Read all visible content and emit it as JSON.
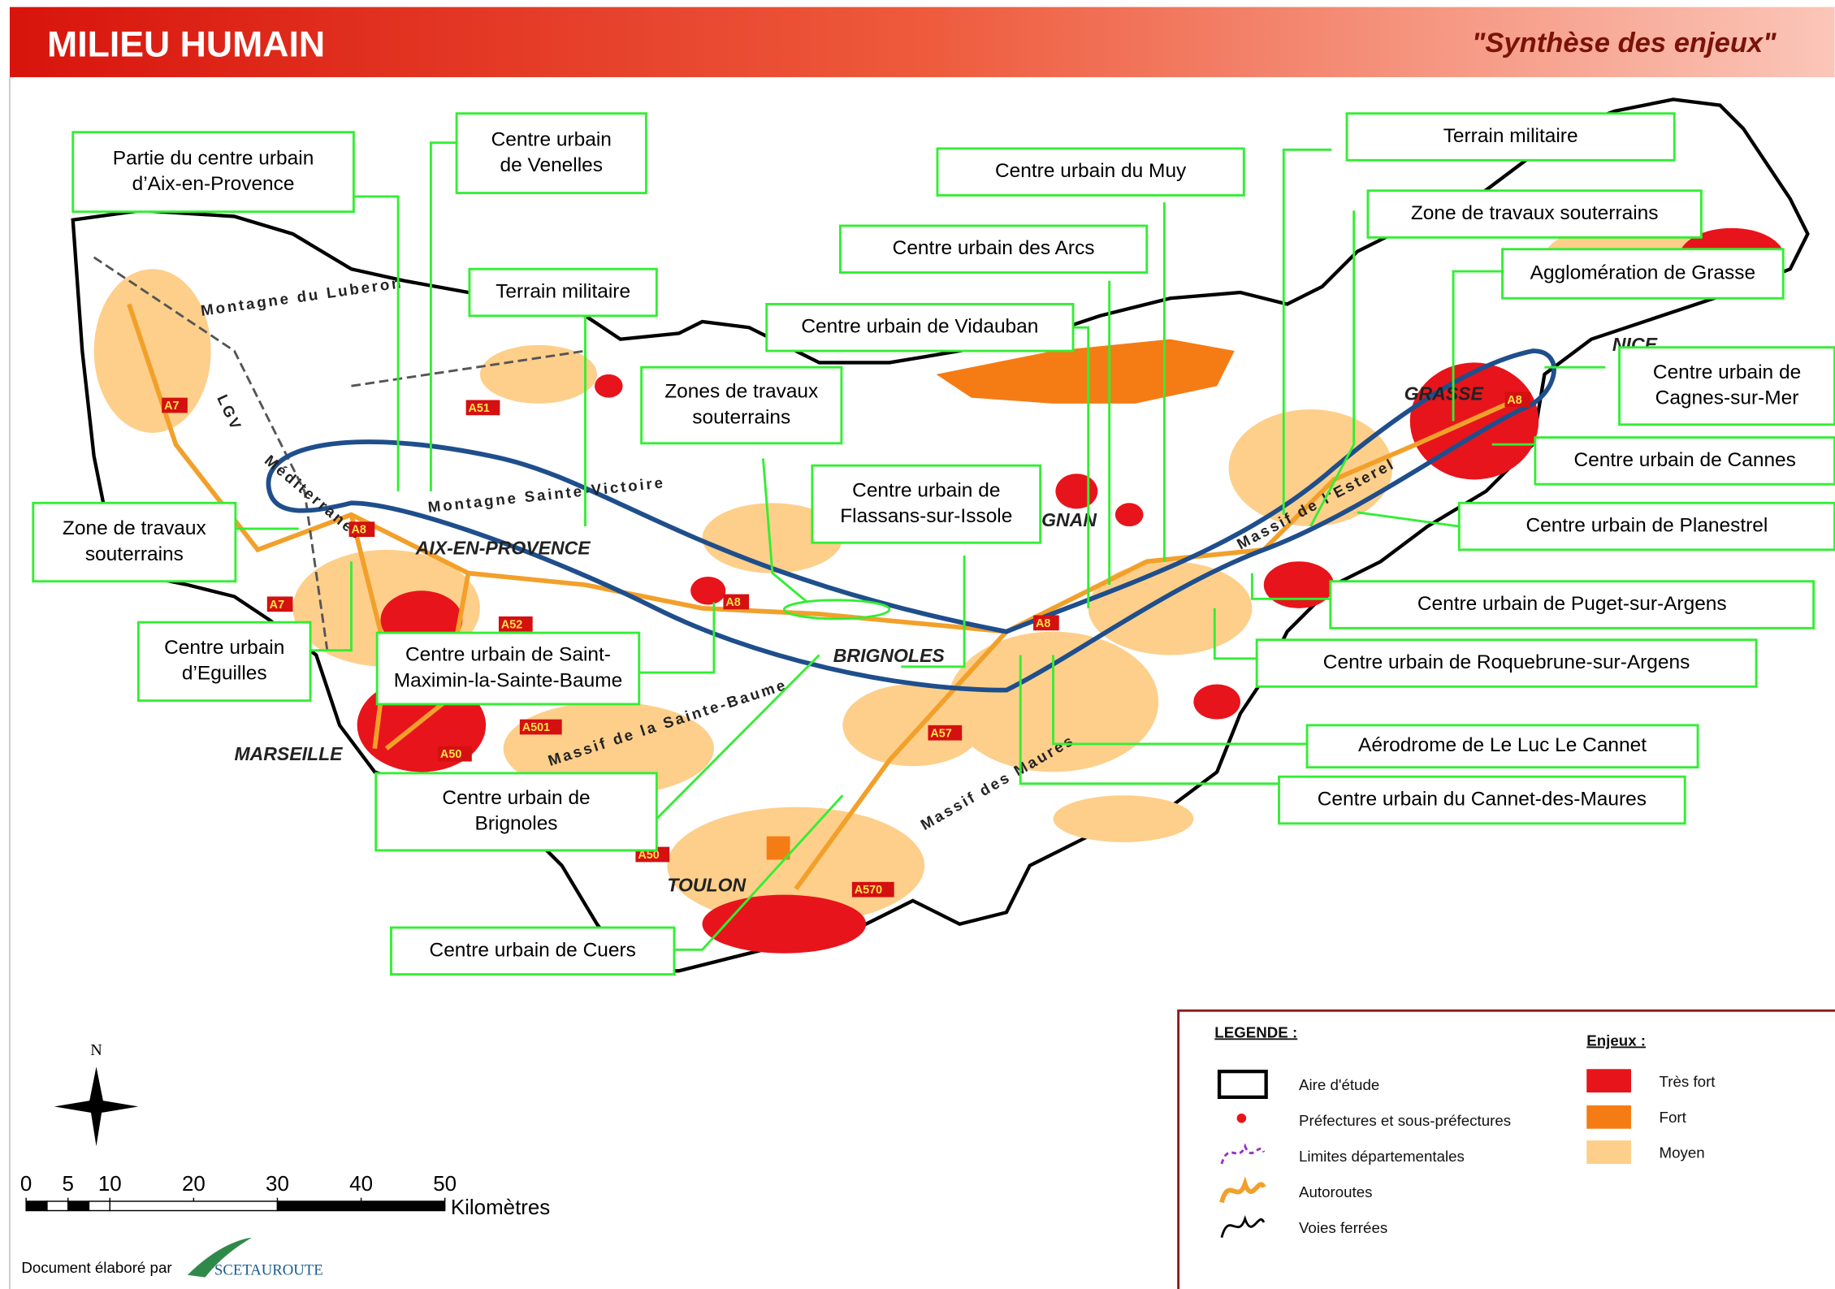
{
  "header": {
    "title": "MILIEU HUMAIN",
    "subtitle": "\"Synthèse des enjeux\""
  },
  "callouts": [
    {
      "lines": [
        "Partie du centre urbain",
        "d’Aix-en-Provence"
      ]
    },
    {
      "lines": [
        "Centre urbain",
        "de Venelles"
      ]
    },
    {
      "lines": [
        "Terrain militaire"
      ]
    },
    {
      "lines": [
        "Zone de travaux",
        "souterrains"
      ]
    },
    {
      "lines": [
        "Centre urbain",
        "d’Eguilles"
      ]
    },
    {
      "lines": [
        "Centre urbain de Saint-",
        "Maximin-la-Sainte-Baume"
      ]
    },
    {
      "lines": [
        "Centre urbain de",
        "Brignoles"
      ]
    },
    {
      "lines": [
        "Centre urbain de Cuers"
      ]
    },
    {
      "lines": [
        "Zones de travaux",
        "souterrains"
      ]
    },
    {
      "lines": [
        "Centre urbain de",
        "Flassans-sur-Issole"
      ]
    },
    {
      "lines": [
        "Centre urbain de Vidauban"
      ]
    },
    {
      "lines": [
        "Centre urbain des Arcs"
      ]
    },
    {
      "lines": [
        "Centre urbain du Muy"
      ]
    },
    {
      "lines": [
        "Terrain militaire"
      ]
    },
    {
      "lines": [
        "Zone de travaux souterrains"
      ]
    },
    {
      "lines": [
        "Agglomération de Grasse"
      ]
    },
    {
      "lines": [
        "Centre urbain de",
        "Cagnes-sur-Mer"
      ]
    },
    {
      "lines": [
        "Centre urbain de Cannes"
      ]
    },
    {
      "lines": [
        "Centre urbain de Planestrel"
      ]
    },
    {
      "lines": [
        "Centre urbain de Puget-sur-Argens"
      ]
    },
    {
      "lines": [
        "Centre urbain de Roquebrune-sur-Argens"
      ]
    },
    {
      "lines": [
        "Aérodrome de Le Luc Le Cannet"
      ]
    },
    {
      "lines": [
        "Centre urbain du Cannet-des-Maures"
      ]
    }
  ],
  "map_labels": {
    "cities": [
      "AIX-EN-PROVENCE",
      "BRIGNOLES",
      "MARSEILLE",
      "TOULON",
      "GRASSE",
      "NICE",
      "GNAN"
    ],
    "reliefs": [
      "Montagne du Luberon",
      "Montagne Sainte-Victoire",
      "Massif de la Sainte-Baume",
      "Massif des Maures",
      "Massif de l'Esterel"
    ],
    "railway": [
      "LGV",
      "Méditerranée"
    ],
    "roads": [
      "A7",
      "A51",
      "A8",
      "A52",
      "A501",
      "A50",
      "A57",
      "A570"
    ]
  },
  "north": "N",
  "scale": {
    "ticks": [
      0,
      5,
      10,
      20,
      30,
      40,
      50
    ],
    "unit": "Kilomètres"
  },
  "credit": {
    "text": "Document élaboré par",
    "company": "SCETAUROUTE"
  },
  "legend": {
    "title": "LEGENDE :",
    "items": [
      "Aire d'étude",
      "Préfectures et sous-préfectures",
      "Limites départementales",
      "Autoroutes",
      "Voies ferrées"
    ],
    "enjeux_title": "Enjeux :",
    "enjeux": [
      "Très fort",
      "Fort",
      "Moyen"
    ]
  }
}
